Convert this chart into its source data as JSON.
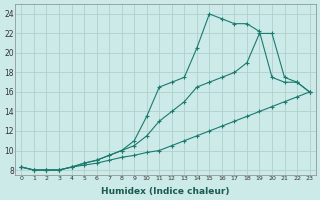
{
  "xlabel": "Humidex (Indice chaleur)",
  "ylabel": "",
  "xlim": [
    -0.5,
    23.5
  ],
  "ylim": [
    7.5,
    25
  ],
  "xticks": [
    0,
    1,
    2,
    3,
    4,
    5,
    6,
    7,
    8,
    9,
    10,
    11,
    12,
    13,
    14,
    15,
    16,
    17,
    18,
    19,
    20,
    21,
    22,
    23
  ],
  "yticks": [
    8,
    10,
    12,
    14,
    16,
    18,
    20,
    22,
    24
  ],
  "bg_color": "#cceae8",
  "grid_color": "#b0d0ce",
  "line_color": "#1a7a6e",
  "line1_x": [
    0,
    1,
    2,
    3,
    4,
    5,
    6,
    7,
    8,
    9,
    10,
    11,
    12,
    13,
    14,
    15,
    16,
    17,
    18,
    19,
    20,
    21,
    22,
    23
  ],
  "line1_y": [
    8.3,
    8.0,
    8.0,
    8.0,
    8.3,
    8.5,
    8.7,
    9.0,
    9.3,
    9.5,
    9.8,
    10.0,
    10.5,
    11.0,
    11.5,
    12.0,
    12.5,
    13.0,
    13.5,
    14.0,
    14.5,
    15.0,
    15.5,
    16.0
  ],
  "line2_x": [
    0,
    1,
    2,
    3,
    4,
    5,
    6,
    7,
    8,
    9,
    10,
    11,
    12,
    13,
    14,
    15,
    16,
    17,
    18,
    19,
    20,
    21,
    22,
    23
  ],
  "line2_y": [
    8.3,
    8.0,
    8.0,
    8.0,
    8.3,
    8.7,
    9.0,
    9.5,
    10.0,
    10.5,
    11.5,
    13.0,
    14.0,
    15.0,
    16.5,
    17.0,
    17.5,
    18.0,
    19.0,
    22.0,
    22.0,
    17.5,
    17.0,
    16.0
  ],
  "line3_x": [
    0,
    1,
    2,
    3,
    4,
    5,
    6,
    7,
    8,
    9,
    10,
    11,
    12,
    13,
    14,
    15,
    16,
    17,
    18,
    19,
    20,
    21,
    22,
    23
  ],
  "line3_y": [
    8.3,
    8.0,
    8.0,
    8.0,
    8.3,
    8.7,
    9.0,
    9.5,
    10.0,
    11.0,
    13.5,
    16.5,
    17.0,
    17.5,
    20.5,
    24.0,
    23.5,
    23.0,
    23.0,
    22.2,
    17.5,
    17.0,
    17.0,
    16.0
  ]
}
